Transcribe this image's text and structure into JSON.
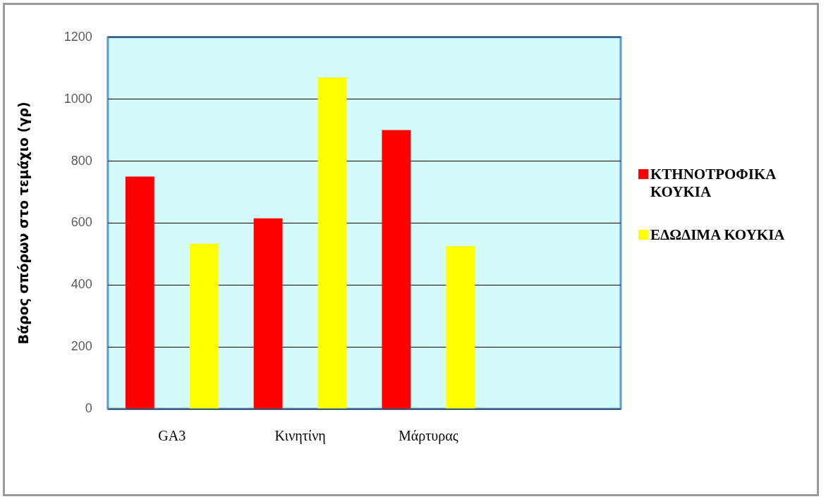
{
  "chart_data": {
    "type": "bar",
    "ylabel": "Βάρος σπόρων στο τεμάχιο (γρ)",
    "categories": [
      "GA3",
      "Κινητίνη",
      "Μάρτυρας",
      null
    ],
    "series": [
      {
        "name": "ΚΤΗΝΟΤΡΟΦΙΚΑ ΚΟΥΚΙΑ",
        "color": "#ff0000",
        "values": [
          750,
          615,
          900,
          null
        ]
      },
      {
        "name": "ΕΔΩΔΙΜΑ ΚΟΥΚΙΑ",
        "color": "#ffff00",
        "values": [
          533,
          1070,
          525,
          null
        ]
      }
    ],
    "ylim": [
      0,
      1200
    ],
    "yticks": [
      0,
      200,
      400,
      600,
      800,
      1000,
      1200
    ],
    "grid": "y",
    "legend": "right"
  }
}
